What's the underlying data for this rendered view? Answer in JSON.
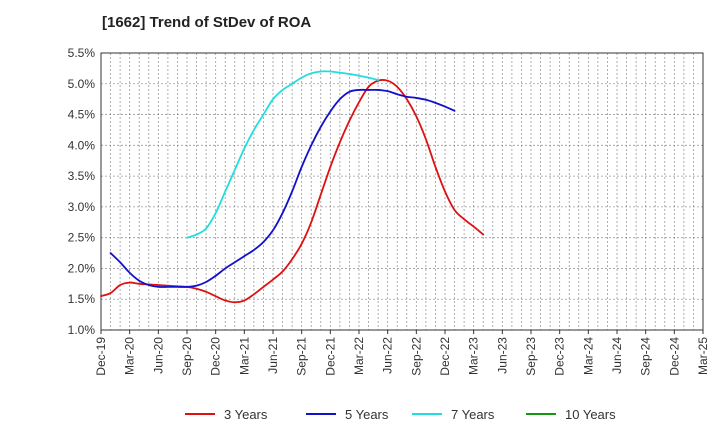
{
  "chart_data": {
    "type": "line",
    "title": "[1662]  Trend of StDev of ROA",
    "xlabel": "",
    "ylabel": "",
    "ylim": [
      0.01,
      0.055
    ],
    "y_ticks": [
      "1.0%",
      "1.5%",
      "2.0%",
      "2.5%",
      "3.0%",
      "3.5%",
      "4.0%",
      "4.5%",
      "5.0%",
      "5.5%"
    ],
    "x_ticks": [
      "Dec-19",
      "Mar-20",
      "Jun-20",
      "Sep-20",
      "Dec-20",
      "Mar-21",
      "Jun-21",
      "Sep-21",
      "Dec-21",
      "Mar-22",
      "Jun-22",
      "Sep-22",
      "Dec-22",
      "Mar-23",
      "Jun-23",
      "Sep-23",
      "Dec-23",
      "Mar-24",
      "Jun-24",
      "Sep-24",
      "Dec-24",
      "Mar-25"
    ],
    "grid": true,
    "legend_position": "bottom",
    "series": [
      {
        "name": "3 Years",
        "color": "#dd1111",
        "start_index": 0,
        "values": [
          0.0155,
          0.016,
          0.0173,
          0.0177,
          0.0175,
          0.0174,
          0.0173,
          0.0172,
          0.0171,
          0.017,
          0.0167,
          0.0162,
          0.0155,
          0.0148,
          0.0145,
          0.0148,
          0.0158,
          0.017,
          0.0182,
          0.0195,
          0.0215,
          0.024,
          0.0275,
          0.032,
          0.0365,
          0.0405,
          0.044,
          0.047,
          0.0495,
          0.0505,
          0.0505,
          0.0495,
          0.0475,
          0.0447,
          0.041,
          0.0365,
          0.0325,
          0.0295,
          0.028,
          0.0268,
          0.0255
        ]
      },
      {
        "name": "5 Years",
        "color": "#1111cc",
        "start_index": 1,
        "values": [
          0.0225,
          0.021,
          0.0193,
          0.018,
          0.0173,
          0.017,
          0.017,
          0.017,
          0.017,
          0.0172,
          0.0178,
          0.0188,
          0.02,
          0.021,
          0.022,
          0.023,
          0.0243,
          0.0262,
          0.029,
          0.0325,
          0.0365,
          0.04,
          0.043,
          0.0455,
          0.0475,
          0.0487,
          0.049,
          0.049,
          0.049,
          0.0488,
          0.0483,
          0.0479,
          0.0477,
          0.0474,
          0.0469,
          0.0463,
          0.0456
        ]
      },
      {
        "name": "7 Years",
        "color": "#22dddd",
        "start_index": 9,
        "values": [
          0.025,
          0.0255,
          0.0265,
          0.029,
          0.0325,
          0.036,
          0.0395,
          0.0425,
          0.045,
          0.0475,
          0.049,
          0.05,
          0.051,
          0.0517,
          0.052,
          0.052,
          0.0518,
          0.0516,
          0.0513,
          0.051,
          0.0506
        ]
      },
      {
        "name": "10 Years",
        "color": "#119911",
        "start_index": 0,
        "values": []
      }
    ]
  }
}
